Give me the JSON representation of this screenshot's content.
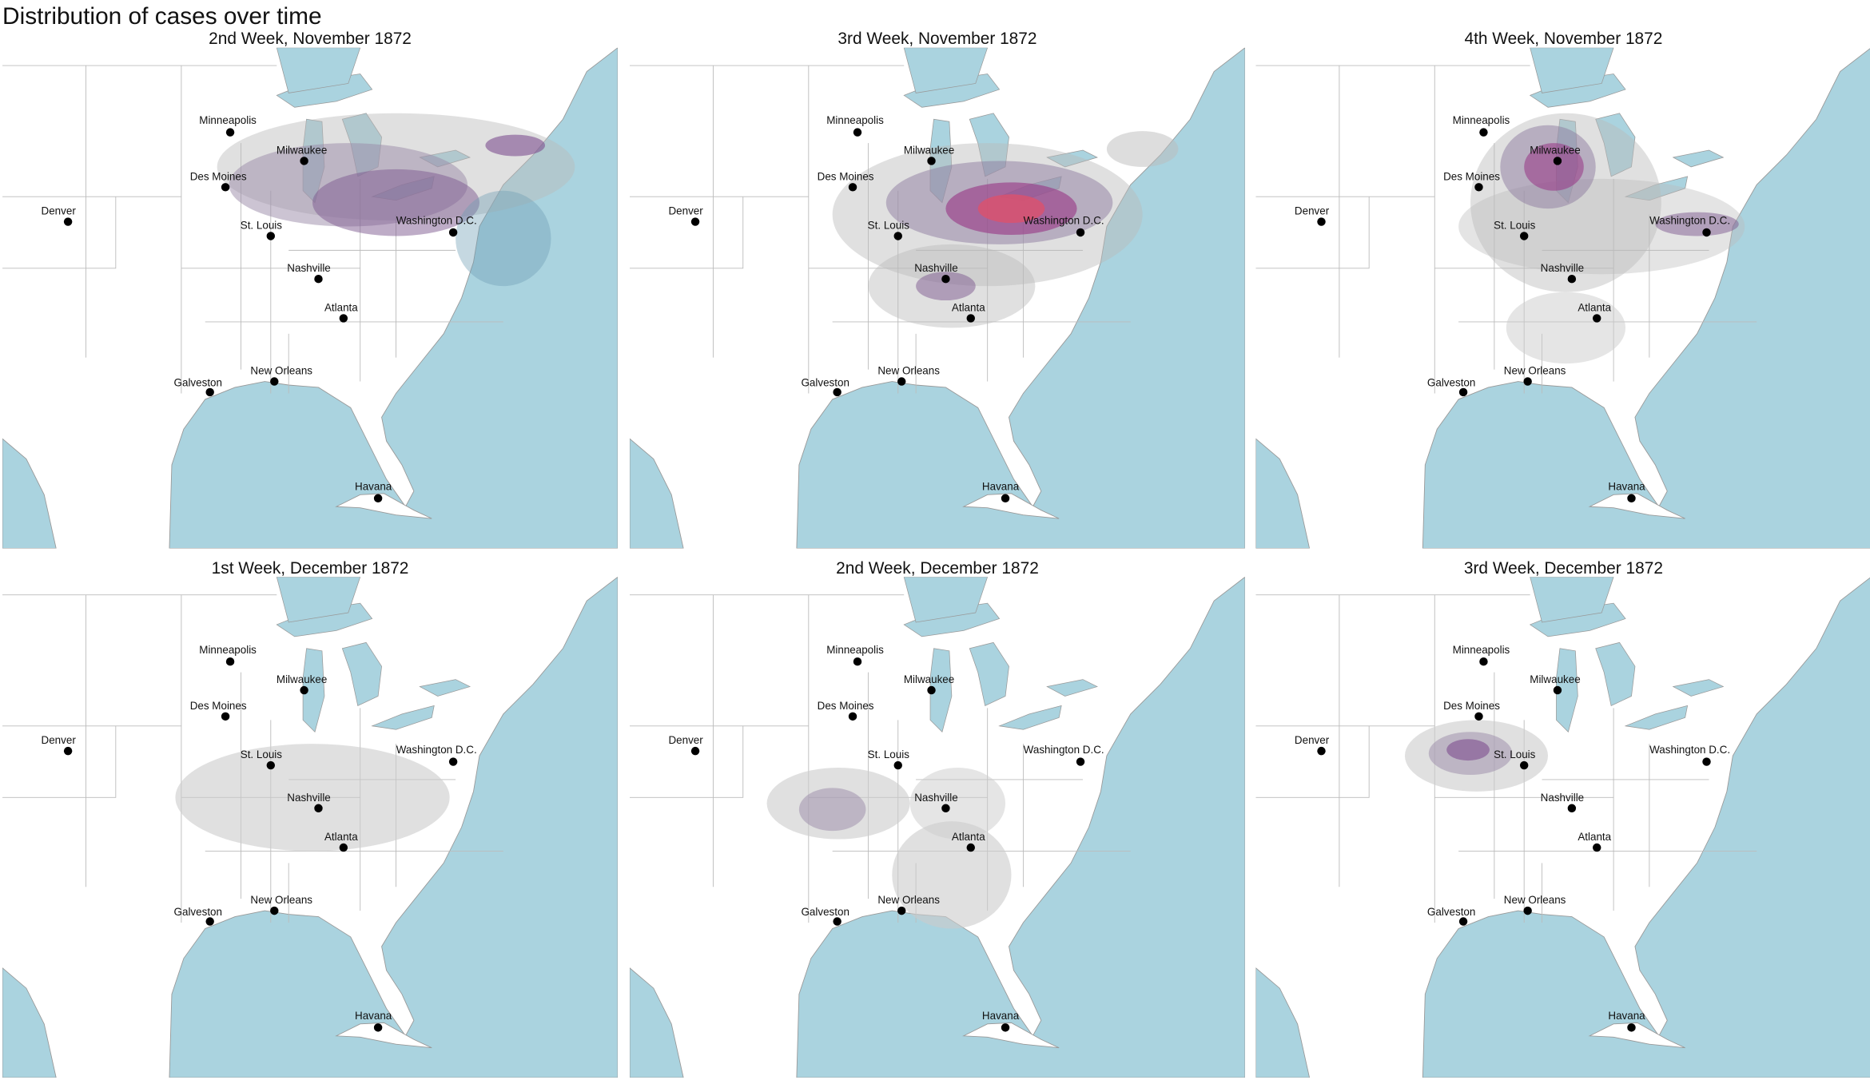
{
  "title": "Distribution of cases over time",
  "panels": [
    {
      "title": "2nd Week, November 1872"
    },
    {
      "title": "3rd Week, November 1872"
    },
    {
      "title": "4th Week, November 1872"
    },
    {
      "title": "1st Week, December 1872"
    },
    {
      "title": "2nd Week, December 1872"
    },
    {
      "title": "3rd Week, December 1872"
    }
  ],
  "cities": [
    "Minneapolis",
    "Milwaukee",
    "Des Moines",
    "Denver",
    "St. Louis",
    "Washington D.C.",
    "Nashville",
    "Atlanta",
    "Galveston",
    "New Orleans",
    "Havana"
  ]
}
